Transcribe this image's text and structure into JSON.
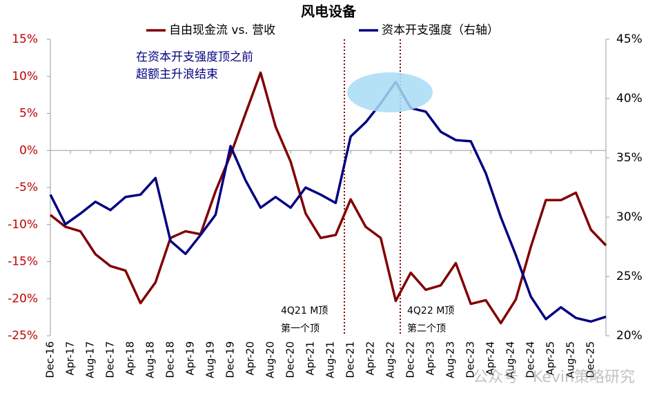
{
  "chart_data": {
    "type": "line",
    "title": "风电设备",
    "x": [
      "2016-12",
      "2017-03",
      "2017-06",
      "2017-09",
      "2017-12",
      "2018-03",
      "2018-06",
      "2018-09",
      "2018-12",
      "2019-03",
      "2019-06",
      "2019-09",
      "2019-12",
      "2020-03",
      "2020-06",
      "2020-09",
      "2020-12",
      "2021-03",
      "2021-06",
      "2021-09",
      "2021-12",
      "2022-03",
      "2022-06",
      "2022-09",
      "2022-12",
      "2023-03",
      "2023-06",
      "2023-09",
      "2023-12",
      "2024-03",
      "2024-06",
      "2024-09",
      "2024-12",
      "2025-03",
      "2025-06",
      "2025-09",
      "2025-12",
      "2026-03"
    ],
    "xlim": [
      "2016-12",
      "2026-03"
    ],
    "xticks": [
      {
        "value": "2016-12",
        "label": "Dec-16"
      },
      {
        "value": "2017-04",
        "label": "Apr-17"
      },
      {
        "value": "2017-08",
        "label": "Aug-17"
      },
      {
        "value": "2017-12",
        "label": "Dec-17"
      },
      {
        "value": "2018-04",
        "label": "Apr-18"
      },
      {
        "value": "2018-08",
        "label": "Aug-18"
      },
      {
        "value": "2018-12",
        "label": "Dec-18"
      },
      {
        "value": "2019-04",
        "label": "Apr-19"
      },
      {
        "value": "2019-08",
        "label": "Aug-19"
      },
      {
        "value": "2019-12",
        "label": "Dec-19"
      },
      {
        "value": "2020-04",
        "label": "Apr-20"
      },
      {
        "value": "2020-08",
        "label": "Aug-20"
      },
      {
        "value": "2020-12",
        "label": "Dec-20"
      },
      {
        "value": "2021-04",
        "label": "Apr-21"
      },
      {
        "value": "2021-08",
        "label": "Aug-21"
      },
      {
        "value": "2021-12",
        "label": "Dec-21"
      },
      {
        "value": "2022-04",
        "label": "Apr-22"
      },
      {
        "value": "2022-08",
        "label": "Aug-22"
      },
      {
        "value": "2022-12",
        "label": "Dec-22"
      },
      {
        "value": "2023-04",
        "label": "Apr-23"
      },
      {
        "value": "2023-08",
        "label": "Aug-23"
      },
      {
        "value": "2023-12",
        "label": "Dec-23"
      },
      {
        "value": "2024-04",
        "label": "Apr-24"
      },
      {
        "value": "2024-08",
        "label": "Aug-24"
      },
      {
        "value": "2024-12",
        "label": "Dec-24"
      },
      {
        "value": "2025-04",
        "label": "Apr-25"
      },
      {
        "value": "2025-08",
        "label": "Aug-25"
      },
      {
        "value": "2025-12",
        "label": "Dec-25"
      }
    ],
    "ylim": [
      -25,
      15
    ],
    "yticks": [
      {
        "value": 15,
        "label": "15%"
      },
      {
        "value": 10,
        "label": "10%"
      },
      {
        "value": 5,
        "label": "5%"
      },
      {
        "value": 0,
        "label": "0%"
      },
      {
        "value": -5,
        "label": "-5%"
      },
      {
        "value": -10,
        "label": "-10%"
      },
      {
        "value": -15,
        "label": "-15%"
      },
      {
        "value": -20,
        "label": "-20%"
      },
      {
        "value": -25,
        "label": "-25%"
      }
    ],
    "y2lim": [
      20,
      45
    ],
    "y2ticks": [
      {
        "value": 45,
        "label": "45%"
      },
      {
        "value": 40,
        "label": "40%"
      },
      {
        "value": 35,
        "label": "35%"
      },
      {
        "value": 30,
        "label": "30%"
      },
      {
        "value": 25,
        "label": "25%"
      },
      {
        "value": 20,
        "label": "20%"
      }
    ],
    "series": [
      {
        "name": "自由现金流 vs. 营收",
        "color": "#800000",
        "axis": "y",
        "values": [
          -8.7,
          -10.3,
          -10.9,
          -14.0,
          -15.6,
          -16.2,
          -20.6,
          -17.8,
          -11.8,
          -10.9,
          -11.3,
          -5.5,
          -0.6,
          5.0,
          10.5,
          3.2,
          -1.5,
          -8.5,
          -11.8,
          -11.4,
          -6.6,
          -10.3,
          -11.8,
          -20.3,
          -16.5,
          -18.8,
          -18.2,
          -15.2,
          -20.7,
          -20.2,
          -23.3,
          -20.1,
          -13.0,
          -6.7,
          -6.7,
          -5.7,
          -10.7,
          -12.8
        ]
      },
      {
        "name": "资本开支强度（右轴）",
        "color": "#000080",
        "axis": "y2",
        "values": [
          31.9,
          29.4,
          30.3,
          31.3,
          30.6,
          31.7,
          31.9,
          33.3,
          28.0,
          26.9,
          28.5,
          30.2,
          36.0,
          33.1,
          30.8,
          31.7,
          30.8,
          32.5,
          31.9,
          31.2,
          36.8,
          38.0,
          39.6,
          41.4,
          39.2,
          38.9,
          37.2,
          36.5,
          36.4,
          33.7,
          30.0,
          26.8,
          23.3,
          21.4,
          22.4,
          21.5,
          21.2,
          21.6
        ]
      }
    ],
    "annotations": [
      "在资本开支强度顶之前",
      "超额主升浪结束",
      "4Q21 M顶",
      "第一个顶",
      "4Q22 M顶",
      "第二个顶"
    ],
    "watermark": "公众号 · Kevin策略研究",
    "legend": "top"
  }
}
